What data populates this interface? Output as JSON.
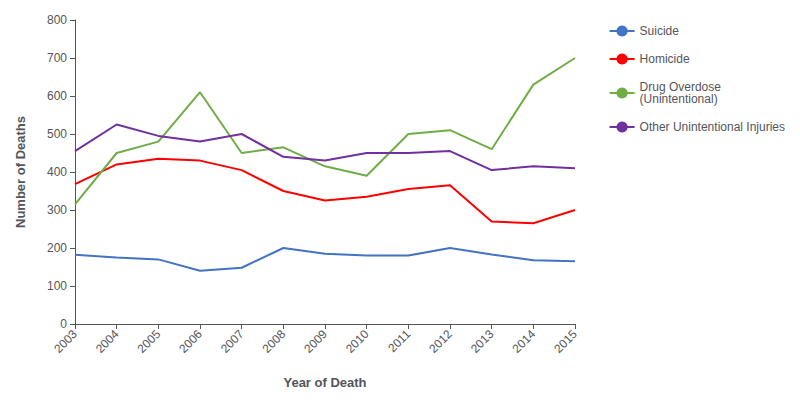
{
  "chart_data": {
    "type": "line",
    "xlabel": "Year of Death",
    "ylabel": "Number of Deaths",
    "categories": [
      "2003",
      "2004",
      "2005",
      "2006",
      "2007",
      "2008",
      "2009",
      "2010",
      "2011",
      "2012",
      "2013",
      "2014",
      "2015"
    ],
    "series": [
      {
        "name": "Suicide",
        "color": "#4472C4",
        "values": [
          182,
          175,
          170,
          140,
          148,
          200,
          185,
          180,
          180,
          200,
          183,
          168,
          165
        ]
      },
      {
        "name": "Homicide",
        "color": "#FF0000",
        "values": [
          368,
          420,
          435,
          430,
          405,
          350,
          325,
          335,
          355,
          365,
          270,
          265,
          300
        ]
      },
      {
        "name": "Drug Overdose\n(Unintentional)",
        "color": "#70AD47",
        "values": [
          315,
          450,
          480,
          610,
          450,
          465,
          415,
          390,
          500,
          510,
          460,
          630,
          700
        ]
      },
      {
        "name": "Other Unintentional Injuries",
        "color": "#7030A0",
        "values": [
          455,
          525,
          495,
          480,
          500,
          440,
          430,
          450,
          450,
          455,
          405,
          415,
          410
        ]
      }
    ],
    "ylim": [
      0,
      800
    ],
    "yticks": [
      0,
      100,
      200,
      300,
      400,
      500,
      600,
      700,
      800
    ],
    "grid": false,
    "legend": "right"
  }
}
